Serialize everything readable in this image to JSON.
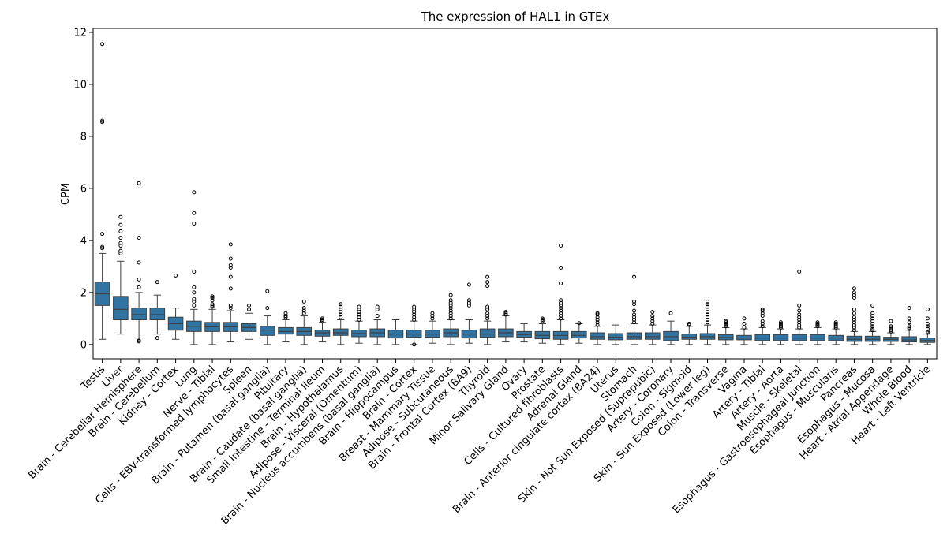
{
  "chart_data": {
    "type": "box",
    "title": "The expression of HAL1 in GTEx",
    "xlabel": "",
    "ylabel": "CPM",
    "ylim": [
      -0.55,
      12.15
    ],
    "yticks": [
      0,
      2,
      4,
      6,
      8,
      10,
      12
    ],
    "grid": false,
    "legend": "none",
    "box_color": "#3274a1",
    "categories": [
      "Testis",
      "Liver",
      "Brain - Cerebellar Hemisphere",
      "Brain - Cerebellum",
      "Kidney - Cortex",
      "Lung",
      "Nerve - Tibial",
      "Cells - EBV-transformed lymphocytes",
      "Spleen",
      "Brain - Putamen (basal ganglia)",
      "Pituitary",
      "Brain - Caudate (basal ganglia)",
      "Small Intestine - Terminal Ileum",
      "Brain - Hypothalamus",
      "Adipose - Visceral (Omentum)",
      "Brain - Nucleus accumbens (basal ganglia)",
      "Brain - Hippocampus",
      "Brain - Cortex",
      "Breast - Mammary Tissue",
      "Adipose - Subcutaneous",
      "Brain - Frontal Cortex (BA9)",
      "Thyroid",
      "Minor Salivary Gland",
      "Ovary",
      "Prostate",
      "Cells - Cultured fibroblasts",
      "Adrenal Gland",
      "Brain - Anterior cingulate cortex (BA24)",
      "Uterus",
      "Stomach",
      "Skin - Not Sun Exposed (Suprapubic)",
      "Artery - Coronary",
      "Colon - Sigmoid",
      "Skin - Sun Exposed (Lower leg)",
      "Colon - Transverse",
      "Vagina",
      "Artery - Tibial",
      "Artery - Aorta",
      "Muscle - Skeletal",
      "Esophagus - Gastroesophageal Junction",
      "Esophagus - Muscularis",
      "Pancreas",
      "Esophagus - Mucosa",
      "Heart - Atrial Appendage",
      "Whole Blood",
      "Heart - Left Ventricle"
    ],
    "boxes": [
      {
        "whislo": 0.2,
        "q1": 1.5,
        "med": 1.95,
        "q3": 2.4,
        "whishi": 3.5,
        "fliers": [
          3.7,
          3.75,
          4.25,
          8.55,
          8.6,
          11.55
        ]
      },
      {
        "whislo": 0.4,
        "q1": 0.95,
        "med": 1.35,
        "q3": 1.85,
        "whishi": 3.2,
        "fliers": [
          3.5,
          3.6,
          3.8,
          3.9,
          4.1,
          4.35,
          4.6,
          4.9
        ]
      },
      {
        "whislo": 0.25,
        "q1": 0.95,
        "med": 1.15,
        "q3": 1.4,
        "whishi": 2.0,
        "fliers": [
          0.15,
          0.12,
          2.2,
          2.5,
          3.15,
          4.1,
          6.2
        ]
      },
      {
        "whislo": 0.4,
        "q1": 0.95,
        "med": 1.15,
        "q3": 1.4,
        "whishi": 1.9,
        "fliers": [
          0.25,
          2.4
        ]
      },
      {
        "whislo": 0.2,
        "q1": 0.55,
        "med": 0.8,
        "q3": 1.05,
        "whishi": 1.4,
        "fliers": [
          2.65
        ]
      },
      {
        "whislo": 0.0,
        "q1": 0.5,
        "med": 0.7,
        "q3": 0.9,
        "whishi": 1.35,
        "fliers": [
          1.5,
          1.65,
          1.75,
          2.0,
          2.2,
          2.8,
          4.65,
          5.05,
          5.85
        ]
      },
      {
        "whislo": 0.0,
        "q1": 0.5,
        "med": 0.68,
        "q3": 0.85,
        "whishi": 1.35,
        "fliers": [
          1.45,
          1.5,
          1.55,
          1.7,
          1.8,
          1.85
        ]
      },
      {
        "whislo": 0.1,
        "q1": 0.5,
        "med": 0.68,
        "q3": 0.85,
        "whishi": 1.3,
        "fliers": [
          1.4,
          1.5,
          2.15,
          2.6,
          2.95,
          3.05,
          3.3,
          3.85
        ]
      },
      {
        "whislo": 0.2,
        "q1": 0.5,
        "med": 0.65,
        "q3": 0.8,
        "whishi": 1.2,
        "fliers": [
          1.35,
          1.5
        ]
      },
      {
        "whislo": 0.0,
        "q1": 0.35,
        "med": 0.55,
        "q3": 0.7,
        "whishi": 1.1,
        "fliers": [
          1.4,
          2.05
        ]
      },
      {
        "whislo": 0.1,
        "q1": 0.4,
        "med": 0.5,
        "q3": 0.65,
        "whishi": 0.95,
        "fliers": [
          1.05,
          1.1,
          1.2
        ]
      },
      {
        "whislo": 0.0,
        "q1": 0.35,
        "med": 0.5,
        "q3": 0.65,
        "whishi": 1.1,
        "fliers": [
          1.2,
          1.3,
          1.4,
          1.65
        ]
      },
      {
        "whislo": 0.1,
        "q1": 0.32,
        "med": 0.45,
        "q3": 0.55,
        "whishi": 0.85,
        "fliers": [
          0.9,
          0.95,
          1.0
        ]
      },
      {
        "whislo": 0.0,
        "q1": 0.35,
        "med": 0.45,
        "q3": 0.6,
        "whishi": 0.95,
        "fliers": [
          1.05,
          1.15,
          1.25,
          1.35,
          1.45,
          1.55
        ]
      },
      {
        "whislo": 0.05,
        "q1": 0.3,
        "med": 0.42,
        "q3": 0.55,
        "whishi": 0.9,
        "fliers": [
          0.95,
          1.05,
          1.15,
          1.25,
          1.35,
          1.45
        ]
      },
      {
        "whislo": 0.0,
        "q1": 0.3,
        "med": 0.45,
        "q3": 0.6,
        "whishi": 0.95,
        "fliers": [
          1.1,
          1.35,
          1.45
        ]
      },
      {
        "whislo": 0.0,
        "q1": 0.25,
        "med": 0.4,
        "q3": 0.55,
        "whishi": 0.95,
        "fliers": []
      },
      {
        "whislo": 0.0,
        "q1": 0.28,
        "med": 0.4,
        "q3": 0.55,
        "whishi": 0.9,
        "fliers": [
          0.0,
          0.95,
          1.05,
          1.15,
          1.25,
          1.35,
          1.45
        ]
      },
      {
        "whislo": 0.05,
        "q1": 0.28,
        "med": 0.4,
        "q3": 0.55,
        "whishi": 0.9,
        "fliers": [
          1.0,
          1.1,
          1.2
        ]
      },
      {
        "whislo": 0.0,
        "q1": 0.3,
        "med": 0.45,
        "q3": 0.6,
        "whishi": 0.95,
        "fliers": [
          1.0,
          1.1,
          1.2,
          1.3,
          1.4,
          1.5,
          1.6,
          1.7,
          1.9
        ]
      },
      {
        "whislo": 0.05,
        "q1": 0.25,
        "med": 0.4,
        "q3": 0.55,
        "whishi": 0.95,
        "fliers": [
          1.5,
          1.6,
          1.7,
          2.3
        ]
      },
      {
        "whislo": 0.0,
        "q1": 0.28,
        "med": 0.4,
        "q3": 0.6,
        "whishi": 0.9,
        "fliers": [
          1.0,
          1.1,
          1.2,
          1.35,
          1.45,
          2.25,
          2.4,
          2.6
        ]
      },
      {
        "whislo": 0.1,
        "q1": 0.3,
        "med": 0.45,
        "q3": 0.6,
        "whishi": 1.1,
        "fliers": [
          1.15,
          1.2,
          1.25
        ]
      },
      {
        "whislo": 0.1,
        "q1": 0.28,
        "med": 0.38,
        "q3": 0.5,
        "whishi": 0.8,
        "fliers": []
      },
      {
        "whislo": 0.05,
        "q1": 0.22,
        "med": 0.35,
        "q3": 0.5,
        "whishi": 0.8,
        "fliers": [
          0.9,
          0.95,
          1.0
        ]
      },
      {
        "whislo": 0.0,
        "q1": 0.2,
        "med": 0.35,
        "q3": 0.5,
        "whishi": 0.95,
        "fliers": [
          1.0,
          1.1,
          1.2,
          1.3,
          1.4,
          1.5,
          1.6,
          1.7,
          2.35,
          2.95,
          3.8
        ]
      },
      {
        "whislo": 0.05,
        "q1": 0.25,
        "med": 0.35,
        "q3": 0.5,
        "whishi": 0.8,
        "fliers": [
          0.82
        ]
      },
      {
        "whislo": 0.0,
        "q1": 0.2,
        "med": 0.3,
        "q3": 0.45,
        "whishi": 0.7,
        "fliers": [
          0.75,
          0.85,
          0.95,
          1.05,
          1.15,
          1.2
        ]
      },
      {
        "whislo": 0.0,
        "q1": 0.18,
        "med": 0.28,
        "q3": 0.42,
        "whishi": 0.75,
        "fliers": []
      },
      {
        "whislo": 0.0,
        "q1": 0.2,
        "med": 0.3,
        "q3": 0.45,
        "whishi": 0.8,
        "fliers": [
          0.85,
          0.95,
          1.05,
          1.15,
          1.3,
          1.55,
          1.65,
          2.6
        ]
      },
      {
        "whislo": 0.0,
        "q1": 0.2,
        "med": 0.3,
        "q3": 0.45,
        "whishi": 0.75,
        "fliers": [
          0.8,
          0.9,
          1.0,
          1.1,
          1.25
        ]
      },
      {
        "whislo": 0.0,
        "q1": 0.15,
        "med": 0.3,
        "q3": 0.5,
        "whishi": 0.9,
        "fliers": [
          1.2
        ]
      },
      {
        "whislo": 0.0,
        "q1": 0.2,
        "med": 0.28,
        "q3": 0.4,
        "whishi": 0.7,
        "fliers": [
          0.75,
          0.8
        ]
      },
      {
        "whislo": 0.0,
        "q1": 0.2,
        "med": 0.3,
        "q3": 0.42,
        "whishi": 0.75,
        "fliers": [
          0.85,
          0.95,
          1.05,
          1.15,
          1.25,
          1.35,
          1.45,
          1.55,
          1.65
        ]
      },
      {
        "whislo": 0.0,
        "q1": 0.18,
        "med": 0.27,
        "q3": 0.38,
        "whishi": 0.65,
        "fliers": [
          0.7,
          0.75,
          0.8,
          0.85,
          0.9
        ]
      },
      {
        "whislo": 0.0,
        "q1": 0.18,
        "med": 0.25,
        "q3": 0.35,
        "whishi": 0.6,
        "fliers": [
          0.65,
          0.8,
          1.0
        ]
      },
      {
        "whislo": 0.0,
        "q1": 0.15,
        "med": 0.25,
        "q3": 0.38,
        "whishi": 0.65,
        "fliers": [
          0.7,
          0.8,
          0.9,
          1.1,
          1.2,
          1.3,
          1.35
        ]
      },
      {
        "whislo": 0.0,
        "q1": 0.15,
        "med": 0.25,
        "q3": 0.38,
        "whishi": 0.6,
        "fliers": [
          0.65,
          0.7,
          0.75,
          0.8,
          0.85
        ]
      },
      {
        "whislo": 0.0,
        "q1": 0.15,
        "med": 0.25,
        "q3": 0.38,
        "whishi": 0.6,
        "fliers": [
          0.65,
          0.75,
          0.85,
          0.95,
          1.05,
          1.15,
          1.3,
          1.5,
          2.8
        ]
      },
      {
        "whislo": 0.0,
        "q1": 0.15,
        "med": 0.25,
        "q3": 0.38,
        "whishi": 0.65,
        "fliers": [
          0.7,
          0.75,
          0.8,
          0.85
        ]
      },
      {
        "whislo": 0.0,
        "q1": 0.15,
        "med": 0.25,
        "q3": 0.35,
        "whishi": 0.6,
        "fliers": [
          0.65,
          0.7,
          0.75,
          0.8,
          0.85
        ]
      },
      {
        "whislo": 0.0,
        "q1": 0.12,
        "med": 0.2,
        "q3": 0.32,
        "whishi": 0.5,
        "fliers": [
          0.55,
          0.65,
          0.75,
          0.85,
          0.95,
          1.05,
          1.2,
          1.35,
          1.8,
          1.9,
          2.0,
          2.15
        ]
      },
      {
        "whislo": 0.0,
        "q1": 0.12,
        "med": 0.2,
        "q3": 0.32,
        "whishi": 0.5,
        "fliers": [
          0.55,
          0.6,
          0.7,
          0.8,
          0.9,
          1.0,
          1.1,
          1.2,
          1.5
        ]
      },
      {
        "whislo": 0.0,
        "q1": 0.12,
        "med": 0.2,
        "q3": 0.28,
        "whishi": 0.45,
        "fliers": [
          0.5,
          0.55,
          0.6,
          0.65,
          0.7,
          0.9
        ]
      },
      {
        "whislo": 0.0,
        "q1": 0.1,
        "med": 0.18,
        "q3": 0.3,
        "whishi": 0.55,
        "fliers": [
          0.6,
          0.65,
          0.7,
          0.85,
          1.0,
          1.4
        ]
      },
      {
        "whislo": 0.0,
        "q1": 0.08,
        "med": 0.15,
        "q3": 0.25,
        "whishi": 0.4,
        "fliers": [
          0.45,
          0.5,
          0.6,
          0.7,
          0.8,
          1.0,
          1.35
        ]
      }
    ]
  }
}
